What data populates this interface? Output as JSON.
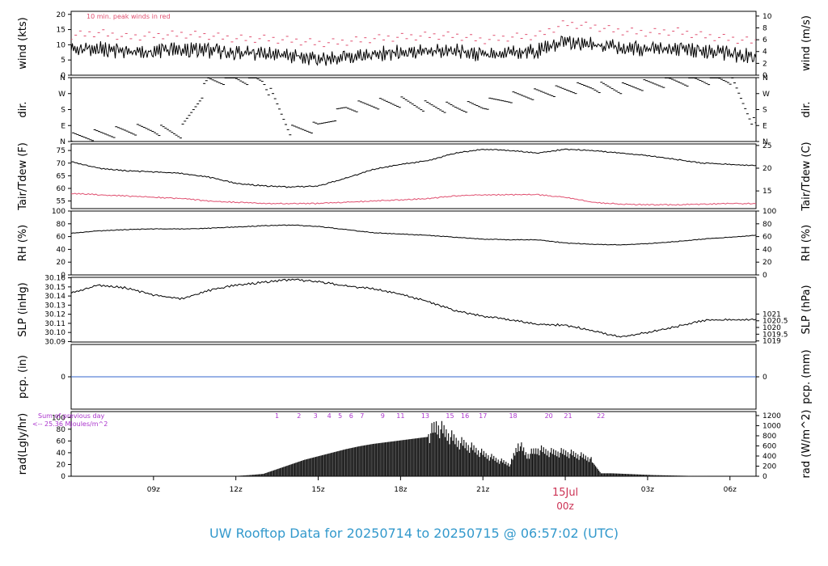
{
  "title": "UW Rooftop Data for 20250714  to  20250715 @ 06:57:02  (UTC)",
  "colors": {
    "title": "#3399cc",
    "peak": "#e05070",
    "tdew": "#e05070",
    "pcp": "#3366cc",
    "solar": "#aa33cc",
    "date": "#cc3355"
  },
  "x_axis": {
    "unit": "hours since 20250714 06:00z",
    "range": [
      0,
      24.95
    ],
    "ticks": [
      {
        "x": 3,
        "label": "09z"
      },
      {
        "x": 6,
        "label": "12z"
      },
      {
        "x": 9,
        "label": "15z"
      },
      {
        "x": 12,
        "label": "18z"
      },
      {
        "x": 15,
        "label": "21z"
      },
      {
        "x": 18,
        "label": ""
      },
      {
        "x": 21,
        "label": "03z"
      },
      {
        "x": 24,
        "label": "06z"
      }
    ],
    "date_label": "15Jul",
    "date_sub": "00z",
    "date_x": 18
  },
  "chart_data": [
    {
      "type": "line",
      "name": "wind",
      "ylabel_left": "wind (kts)",
      "ylabel_right": "wind (m/s)",
      "annotation": "10 min. peak winds in red",
      "ylim": [
        0,
        21
      ],
      "left_ticks": [
        0,
        5,
        10,
        15,
        20
      ],
      "right_ticks": [
        {
          "v": 0,
          "label": "0"
        },
        {
          "v": 3.89,
          "label": "2"
        },
        {
          "v": 7.78,
          "label": "4"
        },
        {
          "v": 11.66,
          "label": "6"
        },
        {
          "v": 15.55,
          "label": "8"
        },
        {
          "v": 19.44,
          "label": "10"
        }
      ],
      "series": [
        {
          "role": "wind",
          "x": [
            0,
            1,
            2,
            3,
            4,
            5,
            6,
            7,
            8,
            9,
            10,
            11,
            12,
            13,
            14,
            15,
            16,
            17,
            18,
            19,
            20,
            21,
            22,
            23,
            24,
            24.95
          ],
          "values": [
            8,
            9,
            7.5,
            8,
            8.5,
            8,
            7.5,
            7,
            6.5,
            5.5,
            6,
            7,
            7.5,
            8,
            8,
            6.5,
            7.5,
            8,
            11,
            10,
            9,
            8.5,
            9,
            8,
            7,
            6
          ]
        },
        {
          "role": "peak",
          "x": [
            0,
            1,
            2,
            3,
            4,
            5,
            6,
            7,
            8,
            9,
            10,
            11,
            12,
            13,
            14,
            15,
            16,
            17,
            18,
            19,
            20,
            21,
            22,
            23,
            24,
            24.95
          ],
          "values": [
            13,
            14,
            12.5,
            13,
            13.5,
            13,
            12,
            12,
            11.5,
            10.5,
            11,
            12,
            12.5,
            13,
            13,
            11.5,
            12.5,
            13,
            17,
            16,
            14.5,
            14,
            14.5,
            13,
            12,
            11
          ]
        }
      ]
    },
    {
      "type": "scatter",
      "name": "dir",
      "ylabel_left": "dir.",
      "ylabel_right": "dir.",
      "ylim": [
        0,
        360
      ],
      "ticks": [
        {
          "v": 0,
          "label": "N"
        },
        {
          "v": 90,
          "label": "E"
        },
        {
          "v": 180,
          "label": "S"
        },
        {
          "v": 270,
          "label": "W"
        },
        {
          "v": 360,
          "label": "N"
        }
      ],
      "series": [
        {
          "role": "dir",
          "x": [
            0,
            1,
            2,
            3,
            4,
            5,
            6,
            7,
            8,
            9,
            10,
            11,
            12,
            13,
            14,
            15,
            16,
            17,
            18,
            19,
            20,
            21,
            22,
            23,
            24,
            24.95
          ],
          "values": [
            20,
            40,
            60,
            70,
            50,
            340,
            355,
            350,
            60,
            80,
            190,
            210,
            220,
            200,
            190,
            200,
            250,
            270,
            290,
            310,
            300,
            320,
            340,
            350,
            355,
            80
          ]
        }
      ]
    },
    {
      "type": "line",
      "name": "temp",
      "ylabel_left": "Tair/Tdew (F)",
      "ylabel_right": "Tair/Tdew (C)",
      "ylim": [
        52,
        77.6
      ],
      "left_ticks": [
        55,
        60,
        65,
        70,
        75
      ],
      "right_ticks": [
        {
          "v": 59,
          "label": "15"
        },
        {
          "v": 68,
          "label": "20"
        },
        {
          "v": 77,
          "label": "25"
        }
      ],
      "series": [
        {
          "role": "tair",
          "x": [
            0,
            1,
            2,
            3,
            4,
            5,
            6,
            7,
            8,
            9,
            10,
            11,
            12,
            13,
            14,
            15,
            16,
            17,
            18,
            19,
            20,
            21,
            22,
            23,
            24,
            24.95
          ],
          "values": [
            70.5,
            68,
            67,
            66.5,
            66,
            64.5,
            62,
            61,
            60.5,
            61,
            64,
            67.5,
            69.5,
            71,
            74,
            75.5,
            75,
            74,
            75.5,
            75,
            74,
            73,
            71.5,
            70,
            69.5,
            69
          ]
        },
        {
          "role": "tdew",
          "x": [
            0,
            1,
            2,
            3,
            4,
            5,
            6,
            7,
            8,
            9,
            10,
            11,
            12,
            13,
            14,
            15,
            16,
            17,
            18,
            19,
            20,
            21,
            22,
            23,
            24,
            24.95
          ],
          "values": [
            58,
            57.5,
            57,
            56.5,
            56,
            55,
            54.5,
            54,
            54,
            54,
            54.5,
            55,
            55.5,
            56,
            57,
            57.5,
            57.5,
            57.5,
            56.5,
            54.5,
            53.8,
            53.5,
            53.5,
            53.8,
            54,
            54
          ]
        }
      ]
    },
    {
      "type": "line",
      "name": "rh",
      "ylabel_left": "RH (%)",
      "ylabel_right": "RH (%)",
      "ylim": [
        0,
        100
      ],
      "left_ticks": [
        0,
        20,
        40,
        60,
        80,
        100
      ],
      "right_ticks": [
        {
          "v": 0,
          "label": "0"
        },
        {
          "v": 20,
          "label": "20"
        },
        {
          "v": 40,
          "label": "40"
        },
        {
          "v": 60,
          "label": "60"
        },
        {
          "v": 80,
          "label": "80"
        },
        {
          "v": 100,
          "label": "100"
        }
      ],
      "series": [
        {
          "role": "rh",
          "x": [
            0,
            1,
            2,
            3,
            4,
            5,
            6,
            7,
            8,
            9,
            10,
            11,
            12,
            13,
            14,
            15,
            16,
            17,
            18,
            19,
            20,
            21,
            22,
            23,
            24,
            24.95
          ],
          "values": [
            65,
            69,
            71,
            72,
            72,
            73,
            75,
            77,
            78,
            76,
            71,
            66,
            64,
            62,
            59,
            56,
            55,
            55,
            50,
            48,
            47,
            49,
            52,
            56,
            59,
            62
          ]
        }
      ]
    },
    {
      "type": "line",
      "name": "slp",
      "ylabel_left": "SLP (inHg)",
      "ylabel_right": "SLP (hPa)",
      "ylim": [
        30.0895,
        30.1605
      ],
      "left_ticks": [
        30.09,
        30.1,
        30.11,
        30.12,
        30.13,
        30.14,
        30.15,
        30.16
      ],
      "right_ticks": [
        {
          "v": 30.0907,
          "label": "1019"
        },
        {
          "v": 30.0981,
          "label": "1019.5"
        },
        {
          "v": 30.1055,
          "label": "1020"
        },
        {
          "v": 30.1128,
          "label": "1020.5"
        },
        {
          "v": 30.1202,
          "label": "1021"
        }
      ],
      "series": [
        {
          "role": "slp",
          "x": [
            0,
            1,
            2,
            3,
            4,
            5,
            6,
            7,
            8,
            9,
            10,
            11,
            12,
            13,
            14,
            15,
            16,
            17,
            18,
            19,
            20,
            21,
            22,
            23,
            24,
            24.95
          ],
          "values": [
            30.143,
            30.152,
            30.149,
            30.141,
            30.137,
            30.146,
            30.152,
            30.155,
            30.158,
            30.156,
            30.151,
            30.148,
            30.142,
            30.134,
            30.124,
            30.118,
            30.114,
            30.109,
            30.108,
            30.102,
            30.095,
            30.1,
            30.106,
            30.113,
            30.114,
            30.114
          ]
        }
      ]
    },
    {
      "type": "line",
      "name": "pcp",
      "ylabel_left": "pcp. (in)",
      "ylabel_right": "pcp. (mm)",
      "ylim": [
        -0.05,
        0.05
      ],
      "left_ticks": [
        0
      ],
      "right_ticks": [
        {
          "v": 0,
          "label": "0"
        }
      ],
      "series": [
        {
          "role": "pcp",
          "x": [
            0,
            24.95
          ],
          "values": [
            0,
            0
          ]
        }
      ]
    },
    {
      "type": "bar",
      "name": "rad",
      "ylabel_left": "rad(Lgly/hr)",
      "ylabel_right": "rad (W/m^2)",
      "ylim": [
        0,
        110
      ],
      "left_ticks": [
        0,
        20,
        40,
        60,
        80,
        100
      ],
      "right_ticks": [
        {
          "v": 0,
          "label": "0"
        },
        {
          "v": 17.2,
          "label": "200"
        },
        {
          "v": 34.4,
          "label": "400"
        },
        {
          "v": 51.6,
          "label": "600"
        },
        {
          "v": 68.8,
          "label": "800"
        },
        {
          "v": 86.0,
          "label": "1000"
        },
        {
          "v": 103.2,
          "label": "1200"
        }
      ],
      "sum_text_1": "Sum of previous day",
      "sum_text_2": "<-- 25.36 MJoules/m^2",
      "hour_labels": [
        {
          "x": 7.5,
          "label": "1"
        },
        {
          "x": 8.3,
          "label": "2"
        },
        {
          "x": 8.9,
          "label": "3"
        },
        {
          "x": 9.4,
          "label": "4"
        },
        {
          "x": 9.8,
          "label": "5"
        },
        {
          "x": 10.2,
          "label": "6"
        },
        {
          "x": 10.6,
          "label": "7"
        },
        {
          "x": 11.35,
          "label": "9"
        },
        {
          "x": 12.0,
          "label": "11"
        },
        {
          "x": 12.9,
          "label": "13"
        },
        {
          "x": 13.8,
          "label": "15"
        },
        {
          "x": 14.35,
          "label": "16"
        },
        {
          "x": 15.0,
          "label": "17"
        },
        {
          "x": 16.1,
          "label": "18"
        },
        {
          "x": 17.4,
          "label": "20"
        },
        {
          "x": 18.1,
          "label": "21"
        },
        {
          "x": 19.3,
          "label": "22"
        }
      ],
      "series": [
        {
          "role": "rad",
          "x": [
            6.0,
            6.5,
            7.0,
            7.5,
            8.0,
            8.5,
            9.0,
            9.5,
            10.0,
            10.5,
            11.0,
            11.5,
            12.0,
            12.5,
            13.0,
            13.3,
            13.6,
            14.0,
            14.5,
            15.0,
            15.5,
            16.0,
            16.3,
            16.6,
            17.0,
            17.5,
            18.0,
            18.5,
            18.9,
            19.3,
            19.7,
            20.2,
            20.7,
            21.2,
            21.7,
            22.2,
            22.7,
            23.2
          ],
          "values": [
            0.5,
            2,
            4,
            12,
            20,
            28,
            34,
            40,
            46,
            51,
            55,
            58,
            61,
            64,
            67,
            85,
            75,
            60,
            50,
            38,
            28,
            20,
            55,
            35,
            45,
            40,
            40,
            35,
            30,
            5,
            5,
            4,
            3,
            2,
            1.5,
            1,
            0.5,
            0.3
          ]
        }
      ]
    }
  ]
}
